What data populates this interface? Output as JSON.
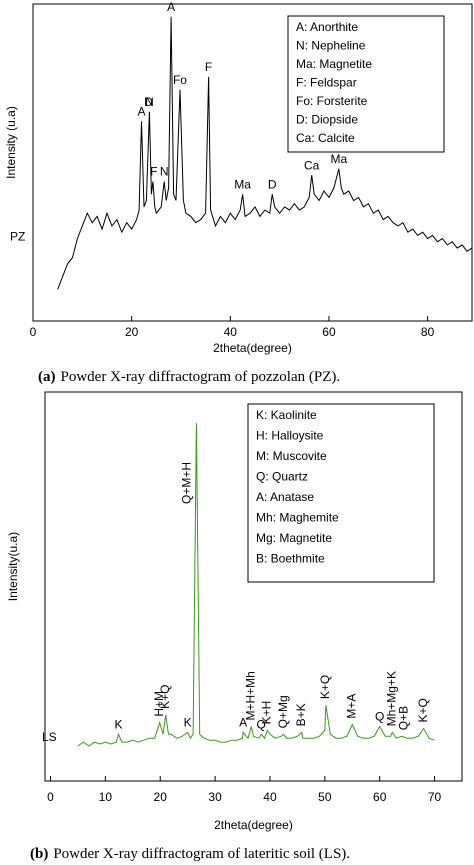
{
  "chart_data": [
    {
      "type": "line",
      "ylabel": "Intensity (u.a)",
      "xlabel": "2theta(degree)",
      "sample_label": "PZ",
      "color": "#000000",
      "caption": {
        "tag": "(a)",
        "text": "Powder X-ray diffractogram of pozzolan (PZ)."
      },
      "xlim": [
        0,
        89
      ],
      "xticks": [
        0,
        20,
        40,
        60,
        80
      ],
      "ylim": [
        0,
        100
      ],
      "legend_corner": "top-right",
      "legend": [
        "A: Anorthite",
        "N: Nepheline",
        "Ma: Magnetite",
        "F: Feldspar",
        "Fo: Forsterite",
        "D: Diopside",
        "Ca: Calcite"
      ],
      "x": [
        5,
        6,
        7,
        8,
        9,
        10,
        11,
        12,
        13,
        14,
        15,
        16,
        17,
        18,
        19,
        20,
        21,
        21.5,
        22,
        22.5,
        23,
        23.6,
        24,
        24.3,
        24.7,
        25,
        26,
        26.6,
        27,
        27.5,
        28,
        28.5,
        29,
        29.8,
        30.5,
        31,
        32,
        33,
        34,
        35,
        35.6,
        36,
        37,
        38,
        39,
        40,
        41,
        42,
        42.5,
        43,
        44,
        45,
        46,
        47,
        48,
        48.5,
        49,
        50,
        51,
        52,
        53,
        54,
        55,
        56,
        56.5,
        57,
        58,
        59,
        60,
        61,
        62,
        62.5,
        63,
        64,
        65,
        66,
        67,
        68,
        69,
        70,
        71,
        72,
        73,
        74,
        75,
        76,
        77,
        78,
        79,
        80,
        81,
        82,
        83,
        84,
        85,
        86,
        87,
        88,
        89
      ],
      "values": [
        10,
        14,
        18,
        20,
        26,
        30,
        34,
        31,
        33,
        29,
        34,
        30,
        32,
        28,
        31,
        29,
        32,
        35,
        63,
        36,
        38,
        66,
        40,
        44,
        36,
        34,
        36,
        44,
        38,
        42,
        96,
        40,
        38,
        73,
        38,
        34,
        33,
        31,
        32,
        34,
        77,
        35,
        30,
        33,
        31,
        34,
        32,
        35,
        40,
        33,
        34,
        36,
        33,
        35,
        34,
        40,
        36,
        34,
        36,
        35,
        37,
        35,
        36,
        39,
        46,
        40,
        38,
        41,
        39,
        42,
        48,
        42,
        40,
        41,
        38,
        39,
        36,
        37,
        34,
        35,
        32,
        33,
        31,
        30,
        31,
        28,
        29,
        27,
        28,
        26,
        27,
        25,
        26,
        24,
        25,
        23,
        24,
        22,
        23
      ],
      "annotations": [
        {
          "text": "A",
          "x": 22,
          "rotated": false
        },
        {
          "text": "N",
          "x": 23.6,
          "rotated": false
        },
        {
          "text": "D",
          "x": 23.4,
          "rotated": false
        },
        {
          "text": "F",
          "x": 24.5,
          "rotated": false
        },
        {
          "text": "N",
          "x": 26.6,
          "rotated": false
        },
        {
          "text": "A",
          "x": 28,
          "rotated": false
        },
        {
          "text": "Fo",
          "x": 29.8,
          "rotated": false
        },
        {
          "text": "F",
          "x": 35.6,
          "rotated": false
        },
        {
          "text": "Ma",
          "x": 42.5,
          "rotated": false
        },
        {
          "text": "D",
          "x": 48.5,
          "rotated": false
        },
        {
          "text": "Ca",
          "x": 56.5,
          "rotated": false
        },
        {
          "text": "Ma",
          "x": 62,
          "rotated": false
        }
      ]
    },
    {
      "type": "line",
      "ylabel": "Intensity(u.a)",
      "xlabel": "2theta(degree)",
      "sample_label": "LS",
      "color": "#3a9a1e",
      "caption": {
        "tag": "(b)",
        "text": "Powder X-ray diffractogram of lateritic soil (LS)."
      },
      "xlim": [
        -1,
        75
      ],
      "xticks": [
        0,
        10,
        20,
        30,
        40,
        50,
        60,
        70
      ],
      "ylim": [
        0,
        100
      ],
      "legend_corner": "top-right",
      "legend": [
        "K: Kaolinite",
        "H: Halloysite",
        "M: Muscovite",
        "Q: Quartz",
        "A: Anatase",
        "Mh: Maghemite",
        "Mg: Magnetite",
        "B: Boethmite"
      ],
      "x": [
        5,
        6,
        7,
        8,
        9,
        10,
        11,
        12,
        12.4,
        13,
        14,
        15,
        16,
        17,
        18,
        19,
        19.9,
        20.5,
        21,
        21.5,
        22,
        23,
        24,
        25,
        25.5,
        26,
        26.6,
        27.2,
        28,
        29,
        30,
        31,
        32,
        33,
        34,
        35,
        35.1,
        36,
        36.6,
        37,
        38,
        38.4,
        39,
        39.5,
        40,
        41,
        42,
        42.5,
        43,
        44,
        45,
        45.8,
        46,
        47,
        48,
        49,
        50,
        50.2,
        51,
        52,
        53,
        54,
        55,
        56,
        57,
        58,
        59,
        60,
        61,
        62,
        62.3,
        63,
        64,
        65,
        66,
        67,
        68,
        69,
        70
      ],
      "values": [
        9,
        10,
        9,
        10,
        9.5,
        10,
        9.5,
        10,
        12,
        10,
        10,
        10.5,
        10,
        10.5,
        11,
        11,
        15,
        12,
        17,
        12,
        12,
        11,
        11.5,
        12.5,
        11,
        12,
        92,
        12,
        11,
        10.5,
        10.5,
        10,
        10,
        10.5,
        10.5,
        11,
        12.5,
        11,
        14,
        11.5,
        11,
        12,
        11,
        13,
        12,
        11,
        11.5,
        12,
        11,
        11,
        11.5,
        12.5,
        11,
        11,
        11,
        11.5,
        13,
        19.5,
        12,
        11,
        11,
        11.5,
        14.5,
        11.5,
        11,
        11,
        11.5,
        14,
        11.5,
        11.5,
        12.5,
        11,
        11.5,
        11,
        11,
        11.5,
        13.5,
        11,
        10.5
      ],
      "annotations": [
        {
          "text": "K",
          "x": 12.4,
          "rotated": false
        },
        {
          "text": "H+M",
          "x": 19.9,
          "rotated": true
        },
        {
          "text": "K+Q",
          "x": 21,
          "rotated": true
        },
        {
          "text": "K",
          "x": 25,
          "rotated": false
        },
        {
          "text": "Q+M+H",
          "x": 26.6,
          "rotated": true
        },
        {
          "text": "A",
          "x": 35.1,
          "rotated": false
        },
        {
          "text": "M+H+Mh",
          "x": 36.6,
          "rotated": true
        },
        {
          "text": "Q",
          "x": 38.4,
          "rotated": false
        },
        {
          "text": "K+H",
          "x": 39.5,
          "rotated": true
        },
        {
          "text": "Q+Mg",
          "x": 42.5,
          "rotated": true
        },
        {
          "text": "B+K",
          "x": 45.8,
          "rotated": true
        },
        {
          "text": "K+Q",
          "x": 50.2,
          "rotated": true
        },
        {
          "text": "M+A",
          "x": 55,
          "rotated": true
        },
        {
          "text": "Q",
          "x": 60,
          "rotated": false
        },
        {
          "text": "Mh+Mg+K",
          "x": 62.3,
          "rotated": true
        },
        {
          "text": "Q+B",
          "x": 64.5,
          "rotated": true
        },
        {
          "text": "K+Q",
          "x": 68,
          "rotated": true
        }
      ]
    }
  ]
}
